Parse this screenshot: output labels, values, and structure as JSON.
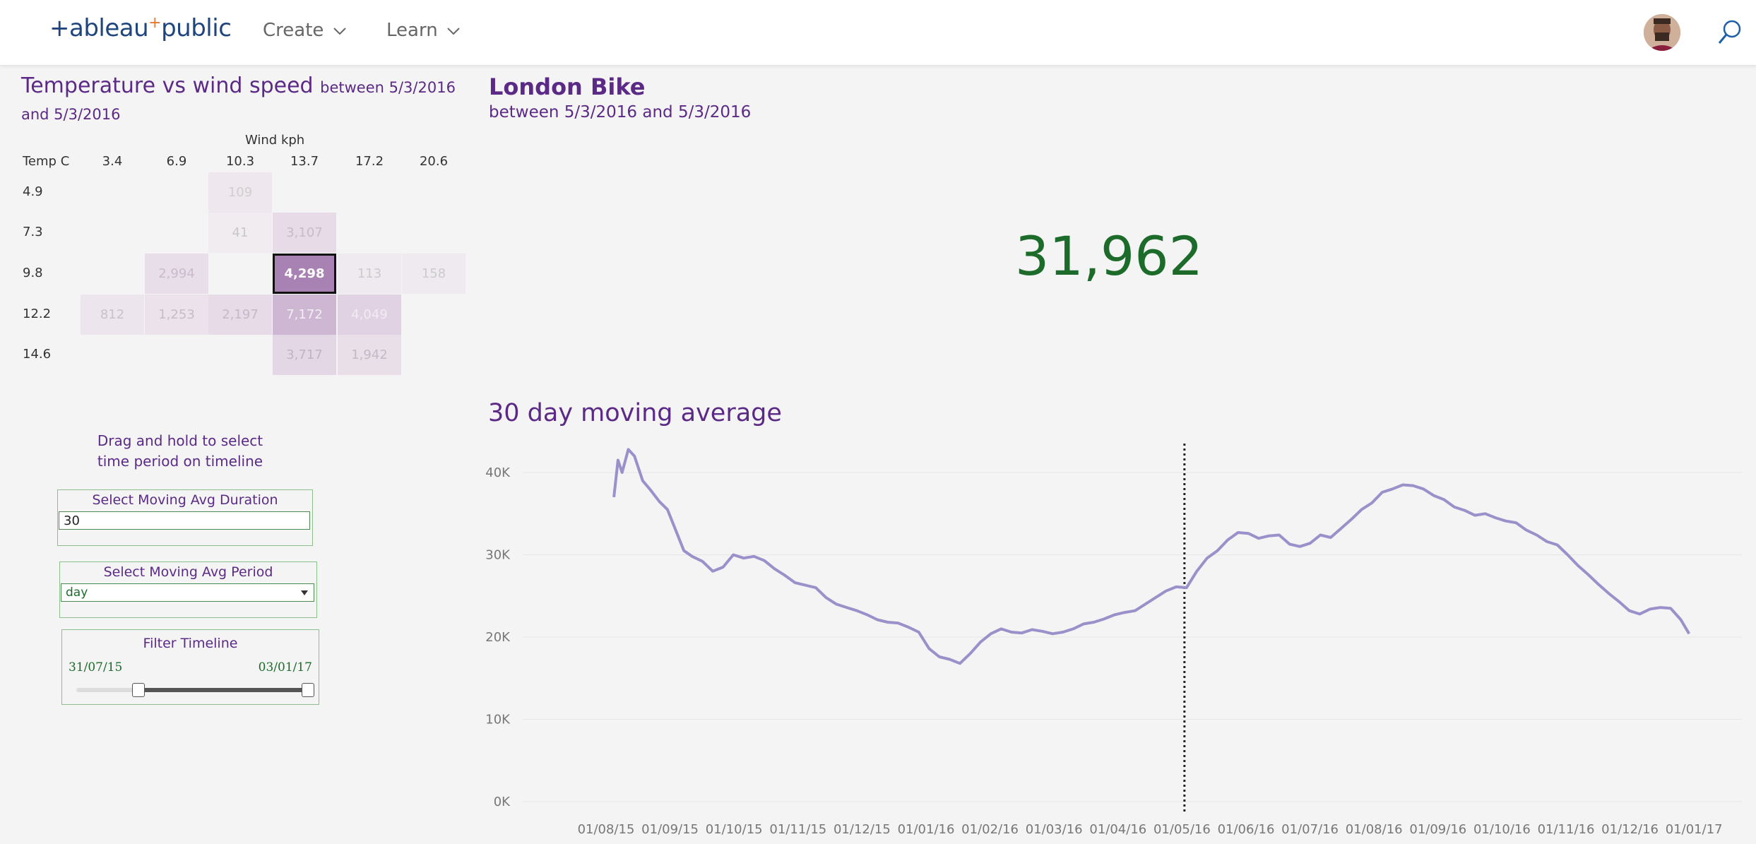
{
  "nav": {
    "logo_left": "+ableau",
    "logo_plus": "+",
    "logo_right": "public",
    "menu": [
      {
        "label": "Create"
      },
      {
        "label": "Learn"
      }
    ]
  },
  "heatmap": {
    "title": "Temperature vs wind speed",
    "subtitle": "between 5/3/2016 and 5/3/2016",
    "col_header": "Wind kph",
    "row_header": "Temp C",
    "columns": [
      "3.4",
      "6.9",
      "10.3",
      "13.7",
      "17.2",
      "20.6"
    ],
    "rows": [
      {
        "label": "4.9",
        "cells": [
          null,
          null,
          "109",
          null,
          null,
          null
        ]
      },
      {
        "label": "7.3",
        "cells": [
          null,
          null,
          "41",
          "3,107",
          null,
          null
        ]
      },
      {
        "label": "9.8",
        "cells": [
          null,
          "2,994",
          null,
          "4,298",
          "113",
          "158"
        ]
      },
      {
        "label": "12.2",
        "cells": [
          "812",
          "1,253",
          "2,197",
          "7,172",
          "4,049",
          null
        ]
      },
      {
        "label": "14.6",
        "cells": [
          null,
          null,
          null,
          "3,717",
          "1,942",
          null
        ]
      }
    ],
    "highlighted": "4,298",
    "colors": {
      "highlight": "#a982b4",
      "strong": "#ceb7d2",
      "mid": "#e0d2e2",
      "light": "#ebe2eb",
      "faint": "#eee8ee"
    }
  },
  "controls": {
    "hint": "Drag and hold to select time period on timeline",
    "duration": {
      "label": "Select Moving Avg Duration",
      "value": "30"
    },
    "period": {
      "label": "Select Moving Avg Period",
      "value": "day"
    },
    "filter": {
      "label": "Filter Timeline",
      "start": "31/07/15",
      "end": "03/01/17",
      "range_fraction": [
        0.27,
        1.0
      ]
    }
  },
  "kpi": {
    "title": "London Bike",
    "subtitle": "between 5/3/2016 and 5/3/2016",
    "value": "31,962",
    "color": "#1c6b2a"
  },
  "chart_data": {
    "type": "line",
    "title": "30 day moving average",
    "xlabel": "",
    "ylabel": "",
    "ylim": [
      0,
      45000
    ],
    "y_ticks": [
      "0K",
      "10K",
      "20K",
      "30K",
      "40K"
    ],
    "x_ticks": [
      "01/08/15",
      "01/09/15",
      "01/10/15",
      "01/11/15",
      "01/12/15",
      "01/01/16",
      "01/02/16",
      "01/03/16",
      "01/04/16",
      "01/05/16",
      "01/06/16",
      "01/07/16",
      "01/08/16",
      "01/09/16",
      "01/10/16",
      "01/11/16",
      "01/12/16",
      "01/01/17"
    ],
    "reference_line_x": "05/03/16",
    "series_color": "#9b90c9",
    "x": [
      "2015-07-31",
      "2015-08-02",
      "2015-08-04",
      "2015-08-07",
      "2015-08-10",
      "2015-08-14",
      "2015-08-18",
      "2015-08-22",
      "2015-08-26",
      "2015-08-30",
      "2015-09-03",
      "2015-09-07",
      "2015-09-12",
      "2015-09-17",
      "2015-09-22",
      "2015-09-27",
      "2015-10-02",
      "2015-10-07",
      "2015-10-12",
      "2015-10-17",
      "2015-10-22",
      "2015-10-27",
      "2015-11-01",
      "2015-11-06",
      "2015-11-11",
      "2015-11-16",
      "2015-11-21",
      "2015-11-26",
      "2015-12-01",
      "2015-12-06",
      "2015-12-11",
      "2015-12-16",
      "2015-12-21",
      "2015-12-26",
      "2015-12-31",
      "2016-01-05",
      "2016-01-10",
      "2016-01-15",
      "2016-01-20",
      "2016-01-25",
      "2016-01-30",
      "2016-02-04",
      "2016-02-09",
      "2016-02-14",
      "2016-02-19",
      "2016-02-24",
      "2016-02-29",
      "2016-03-05",
      "2016-03-10",
      "2016-03-15",
      "2016-03-20",
      "2016-03-25",
      "2016-03-30",
      "2016-04-04",
      "2016-04-09",
      "2016-04-14",
      "2016-04-19",
      "2016-04-24",
      "2016-04-29",
      "2016-05-04",
      "2016-05-09",
      "2016-05-14",
      "2016-05-19",
      "2016-05-24",
      "2016-05-29",
      "2016-06-03",
      "2016-06-08",
      "2016-06-13",
      "2016-06-18",
      "2016-06-23",
      "2016-06-28",
      "2016-07-03",
      "2016-07-08",
      "2016-07-13",
      "2016-07-18",
      "2016-07-23",
      "2016-07-28",
      "2016-08-02",
      "2016-08-07",
      "2016-08-12",
      "2016-08-17",
      "2016-08-22",
      "2016-08-27",
      "2016-09-01",
      "2016-09-06",
      "2016-09-11",
      "2016-09-16",
      "2016-09-21",
      "2016-09-26",
      "2016-10-01",
      "2016-10-06",
      "2016-10-11",
      "2016-10-16",
      "2016-10-21",
      "2016-10-26",
      "2016-10-31",
      "2016-11-05",
      "2016-11-10",
      "2016-11-15",
      "2016-11-20",
      "2016-11-25",
      "2016-11-30",
      "2016-12-05",
      "2016-12-10",
      "2016-12-15",
      "2016-12-20",
      "2016-12-25",
      "2016-12-30",
      "2017-01-03"
    ],
    "series": [
      {
        "values": [
          37000,
          41500,
          40000,
          42800,
          42000,
          39000,
          37800,
          36500,
          35500,
          33000,
          30500,
          29800,
          29200,
          28000,
          28500,
          30000,
          29600,
          29800,
          29300,
          28300,
          27500,
          26600,
          26300,
          26000,
          24800,
          24000,
          23600,
          23200,
          22700,
          22100,
          21800,
          21700,
          21200,
          20600,
          18600,
          17600,
          17300,
          16800,
          18000,
          19400,
          20400,
          21000,
          20600,
          20500,
          20900,
          20700,
          20400,
          20600,
          21000,
          21600,
          21800,
          22200,
          22700,
          23000,
          23200,
          24000,
          24800,
          25600,
          26100,
          26000,
          28000,
          29600,
          30500,
          31800,
          32700,
          32600,
          32000,
          32300,
          32400,
          31300,
          31000,
          31400,
          32400,
          32100,
          33200,
          34300,
          35500,
          36300,
          37600,
          38000,
          38500,
          38400,
          38000,
          37200,
          36700,
          35800,
          35400,
          34800,
          35000,
          34500,
          34100,
          33900,
          33000,
          32400,
          31600,
          31200,
          30000,
          28700,
          27600,
          26400,
          25300,
          24300,
          23200,
          22800,
          23400,
          23600,
          23500,
          22100,
          20400
        ]
      }
    ]
  }
}
